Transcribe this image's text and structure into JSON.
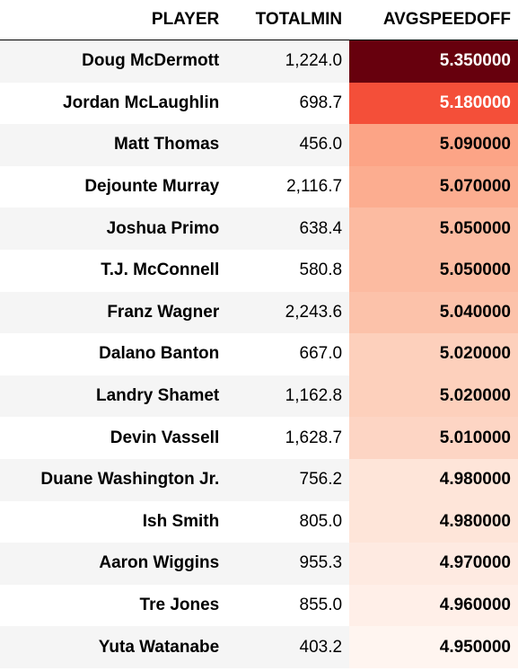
{
  "table": {
    "header": [
      "PLAYER",
      "TOTALMIN",
      "AVGSPEEDOFF"
    ],
    "rows": [
      [
        "Doug McDermott",
        "1,224.0",
        "5.350000"
      ],
      [
        "Jordan McLaughlin",
        "698.7",
        "5.180000"
      ],
      [
        "Matt Thomas",
        "456.0",
        "5.090000"
      ],
      [
        "Dejounte Murray",
        "2,116.7",
        "5.070000"
      ],
      [
        "Joshua Primo",
        "638.4",
        "5.050000"
      ],
      [
        "T.J. McConnell",
        "580.8",
        "5.050000"
      ],
      [
        "Franz Wagner",
        "2,243.6",
        "5.040000"
      ],
      [
        "Dalano Banton",
        "667.0",
        "5.020000"
      ],
      [
        "Landry Shamet",
        "1,162.8",
        "5.020000"
      ],
      [
        "Devin Vassell",
        "1,628.7",
        "5.010000"
      ],
      [
        "Duane Washington Jr.",
        "756.2",
        "4.980000"
      ],
      [
        "Ish Smith",
        "805.0",
        "4.980000"
      ],
      [
        "Aaron Wiggins",
        "955.3",
        "4.970000"
      ],
      [
        "Tre Jones",
        "855.0",
        "4.960000"
      ],
      [
        "Yuta Watanabe",
        "403.2",
        "4.950000"
      ]
    ],
    "gradient_colors": [
      "#67000d",
      "#f44f39",
      "#fca486",
      "#fcad90",
      "#fcbba1",
      "#fcbba1",
      "#fcc2aa",
      "#fdd0bc",
      "#fdd0bc",
      "#fdd5c4",
      "#fee5d9",
      "#fee5d9",
      "#feeae1",
      "#ffefe8",
      "#fff5f0"
    ]
  }
}
